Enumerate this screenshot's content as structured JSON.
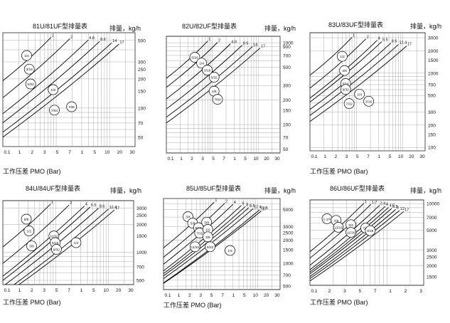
{
  "colors": {
    "background": "#ffffff",
    "grid": "#8a8a8a",
    "curve": "#000000",
    "text": "#111111"
  },
  "chart_data": [
    {
      "type": "line",
      "title": "81U/81UF型排量表",
      "y_title": "排量，kg/h",
      "x_title": "工作压差 PMO (Bar)",
      "xscale": "log",
      "yscale": "log",
      "xlim": [
        0.1,
        30
      ],
      "ylim": [
        40,
        600
      ],
      "x_ticks": [
        "0.1",
        "1",
        "2",
        "3",
        "5",
        "7",
        "1",
        "5",
        "10",
        "20",
        "30"
      ],
      "y_ticks": [
        "500",
        "300",
        "250",
        "200",
        "150",
        "100",
        "70",
        "50"
      ],
      "series": [
        {
          "name": "1",
          "label_x": 0.8
        },
        {
          "name": "2",
          "label_x": 1.8
        },
        {
          "name": "4.8",
          "label_x": 4.0
        },
        {
          "name": "8.6",
          "label_x": 6.5
        },
        {
          "name": "14",
          "label_x": 11
        },
        {
          "name": "17",
          "label_x": 15
        }
      ],
      "badges": [
        "1/4",
        "3/16",
        "5/32",
        "1/8",
        "7/64",
        "#38"
      ]
    },
    {
      "type": "line",
      "title": "82U/82UF型排量表",
      "y_title": "排量，kg/h",
      "x_title": "",
      "xscale": "log",
      "yscale": "log",
      "xlim": [
        0.1,
        30
      ],
      "ylim": [
        45,
        1200
      ],
      "x_ticks": [
        "0.1",
        "1",
        "2",
        "3",
        "5",
        "7",
        "1",
        "5",
        "10",
        "20",
        "30"
      ],
      "y_ticks": [
        "1000",
        "900",
        "700",
        "500",
        "300",
        "200",
        "150",
        "100",
        "70",
        "50"
      ],
      "series": [
        {
          "name": "1",
          "label_x": 0.8
        },
        {
          "name": "2",
          "label_x": 1.3
        },
        {
          "name": "4.8",
          "label_x": 2.5
        },
        {
          "name": "8.6",
          "label_x": 4.5
        },
        {
          "name": "14",
          "label_x": 7.5
        },
        {
          "name": "17",
          "label_x": 11
        }
      ],
      "badges": [
        "5/16",
        "1/4",
        "3/16",
        "5/32",
        "1/8",
        "7/64"
      ]
    },
    {
      "type": "line",
      "title": "83U/83UF型排量表",
      "y_title": "排量，kg/h",
      "x_title": "工作压差 PMO (Bar)",
      "xscale": "log",
      "yscale": "log",
      "xlim": [
        0.1,
        30
      ],
      "ylim": [
        90,
        3500
      ],
      "x_ticks": [
        "0.1",
        "1",
        "2",
        "3",
        "5",
        "7",
        "1",
        "5",
        "10",
        "20",
        "30"
      ],
      "y_ticks": [
        "3000",
        "2000",
        "1500",
        "1000",
        "700",
        "500",
        "300",
        "200",
        "150",
        "100"
      ],
      "series": [
        {
          "name": "1",
          "label_x": 0.8
        },
        {
          "name": "2",
          "label_x": 1.6
        },
        {
          "name": "4",
          "label_x": 2.8
        },
        {
          "name": "5.5",
          "label_x": 3.5
        },
        {
          "name": "8.6",
          "label_x": 5.5
        },
        {
          "name": "12.4",
          "label_x": 8
        },
        {
          "name": "17",
          "label_x": 12
        }
      ],
      "badges": [
        "1/2",
        "3/8",
        "5/16",
        "9/32",
        "1/4",
        "7/32",
        "3/16"
      ]
    },
    {
      "type": "line",
      "title": "84U/84UF型排量表",
      "y_title": "排量，kg/h",
      "x_title": "工作压差 PMO (Bar)",
      "xscale": "log",
      "yscale": "log",
      "xlim": [
        0.1,
        30
      ],
      "ylim": [
        450,
        3600
      ],
      "x_ticks": [
        "0.1",
        "1",
        "2",
        "3",
        "5",
        "7",
        "1",
        "5",
        "10",
        "20",
        "30"
      ],
      "y_ticks": [
        "3000",
        "2500",
        "2000",
        "1500",
        "1000",
        "700",
        "500"
      ],
      "series": [
        {
          "name": "1",
          "label_x": 0.8
        },
        {
          "name": "2",
          "label_x": 1.8
        },
        {
          "name": "4",
          "label_x": 3.5
        },
        {
          "name": "5.5",
          "label_x": 4.5
        },
        {
          "name": "8.6",
          "label_x": 6.5
        },
        {
          "name": "12.4",
          "label_x": 10
        },
        {
          "name": "17",
          "label_x": 13
        }
      ],
      "badges": [
        "5/8",
        "1/2",
        "3/8",
        "11/32",
        "5/16",
        "9/32",
        "1/4"
      ]
    },
    {
      "type": "line",
      "title": "85U/85UF型排量表",
      "y_title": "排量，kg/h",
      "x_title": "工作压差 PMO (Bar)",
      "xscale": "log",
      "yscale": "log",
      "xlim": [
        0.1,
        30
      ],
      "ylim": [
        450,
        7000
      ],
      "x_ticks": [
        "0.1",
        "1",
        "2",
        "3",
        "5",
        "7",
        "1",
        "5",
        "10",
        "20",
        "30"
      ],
      "y_ticks": [
        "5000",
        "3000",
        "2500",
        "2000",
        "1500",
        "1000",
        "700",
        "500"
      ],
      "series": [
        {
          "name": "1",
          "label_x": 1.2
        },
        {
          "name": "2",
          "label_x": 2.0
        },
        {
          "name": "4",
          "label_x": 3.0
        },
        {
          "name": "6",
          "label_x": 4.5
        },
        {
          "name": "8",
          "label_x": 5.5
        },
        {
          "name": "8.6",
          "label_x": 6.5
        },
        {
          "name": "12.4",
          "label_x": 8
        },
        {
          "name": "15.5",
          "label_x": 11
        },
        {
          "name": "17",
          "label_x": 12
        }
      ],
      "badges": [
        "3/4",
        "5/8",
        "9/16",
        "7/16",
        "5/8",
        "1/2",
        "3/8",
        "11/32",
        "9/32",
        "1/4"
      ]
    },
    {
      "type": "line",
      "title": "86U/86UF型排量表",
      "y_title": "排量，kg/h",
      "x_title": "工作压差 PMO (Bar)",
      "xscale": "log",
      "yscale": "log",
      "xlim": [
        0.1,
        3
      ],
      "ylim": [
        1200,
        11000
      ],
      "x_ticks": [
        "0.1",
        "2",
        "3",
        "5",
        "7",
        "1",
        "2",
        "3"
      ],
      "y_ticks": [
        "10000",
        "7000",
        "5000",
        "3000",
        "2500",
        "2000",
        "1500"
      ],
      "series": [
        {
          "name": "1",
          "label_x": 0.5
        },
        {
          "name": "1.7",
          "label_x": 0.62
        },
        {
          "name": "2.4",
          "label_x": 0.8
        },
        {
          "name": "4",
          "label_x": 0.95
        },
        {
          "name": "4.5",
          "label_x": 1.05
        },
        {
          "name": "5.5",
          "label_x": 1.15
        },
        {
          "name": "8",
          "label_x": 1.3
        },
        {
          "name": "12",
          "label_x": 1.45
        },
        {
          "name": "17",
          "label_x": 1.65
        }
      ],
      "badges": [
        "1-1/4",
        "7/8",
        "13/16",
        "3/4",
        "11/16",
        "5/8",
        "9/16"
      ]
    }
  ]
}
